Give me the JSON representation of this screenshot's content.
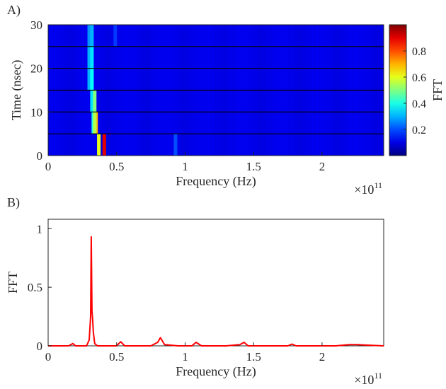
{
  "figure": {
    "panel_a_label": "A)",
    "panel_b_label": "B)"
  },
  "chart_data": [
    {
      "type": "heatmap",
      "title": "",
      "xlabel": "Frequency (Hz)",
      "ylabel": "Time (nsec)",
      "x_multiplier_base": "×10",
      "x_multiplier_exp": "11",
      "xlim": [
        0,
        2.45
      ],
      "ylim": [
        0,
        30
      ],
      "x_ticks": [
        0,
        0.5,
        1,
        1.5,
        2
      ],
      "x_tick_labels": [
        "0",
        "0.5",
        "1",
        "1.5",
        "2"
      ],
      "y_ticks": [
        0,
        10,
        20,
        30
      ],
      "y_tick_labels": [
        "0",
        "10",
        "20",
        "30"
      ],
      "colorbar_label": "FFT",
      "colorbar_ticks": [
        0.2,
        0.4,
        0.6,
        0.8
      ],
      "colorbar_tick_labels": [
        "0.2",
        "0.4",
        "0.6",
        "0.8"
      ],
      "colorbar_range": [
        0,
        1
      ],
      "colormap": "jet",
      "time_bins": [
        {
          "t0": 0,
          "t1": 5,
          "peaks": [
            {
              "f": 0.37,
              "v": 0.6
            },
            {
              "f": 0.41,
              "v": 0.9
            },
            {
              "f": 0.93,
              "v": 0.2
            }
          ]
        },
        {
          "t0": 5,
          "t1": 10,
          "peaks": [
            {
              "f": 0.33,
              "v": 0.4
            },
            {
              "f": 0.35,
              "v": 0.7
            },
            {
              "f": 0.34,
              "v": 0.55
            }
          ]
        },
        {
          "t0": 10,
          "t1": 15,
          "peaks": [
            {
              "f": 0.32,
              "v": 0.35
            },
            {
              "f": 0.34,
              "v": 0.5
            }
          ]
        },
        {
          "t0": 15,
          "t1": 20,
          "peaks": [
            {
              "f": 0.3,
              "v": 0.3
            },
            {
              "f": 0.32,
              "v": 0.38
            }
          ]
        },
        {
          "t0": 20,
          "t1": 25,
          "peaks": [
            {
              "f": 0.3,
              "v": 0.3
            },
            {
              "f": 0.32,
              "v": 0.35
            }
          ]
        },
        {
          "t0": 25,
          "t1": 30,
          "peaks": [
            {
              "f": 0.3,
              "v": 0.27
            },
            {
              "f": 0.32,
              "v": 0.3
            },
            {
              "f": 0.49,
              "v": 0.18
            }
          ]
        }
      ]
    },
    {
      "type": "line",
      "title": "",
      "xlabel": "Frequency (Hz)",
      "ylabel": "FFT",
      "x_multiplier_base": "×10",
      "x_multiplier_exp": "11",
      "xlim": [
        0,
        2.45
      ],
      "ylim": [
        0,
        1.08
      ],
      "x_ticks": [
        0,
        0.5,
        1,
        1.5,
        2
      ],
      "x_tick_labels": [
        "0",
        "0.5",
        "1",
        "1.5",
        "2"
      ],
      "y_ticks": [
        0,
        0.5,
        1
      ],
      "y_tick_labels": [
        "0",
        "0.5",
        "1"
      ],
      "line_color": "#ff0000",
      "x": [
        0,
        0.15,
        0.18,
        0.2,
        0.28,
        0.3,
        0.31,
        0.315,
        0.32,
        0.325,
        0.33,
        0.34,
        0.36,
        0.5,
        0.53,
        0.56,
        0.75,
        0.8,
        0.82,
        0.85,
        0.95,
        1.05,
        1.08,
        1.12,
        1.3,
        1.4,
        1.43,
        1.46,
        1.6,
        1.75,
        1.78,
        1.81,
        2.1,
        2.2,
        2.25,
        2.45
      ],
      "y": [
        0,
        0,
        0.02,
        0,
        0,
        0.05,
        0.25,
        0.93,
        0.3,
        0.22,
        0.12,
        0.02,
        0,
        0,
        0.035,
        0,
        0,
        0.03,
        0.07,
        0.01,
        0,
        0,
        0.03,
        0,
        0,
        0.01,
        0.03,
        0,
        0,
        0,
        0.015,
        0,
        0,
        0.01,
        0.01,
        0
      ]
    }
  ]
}
